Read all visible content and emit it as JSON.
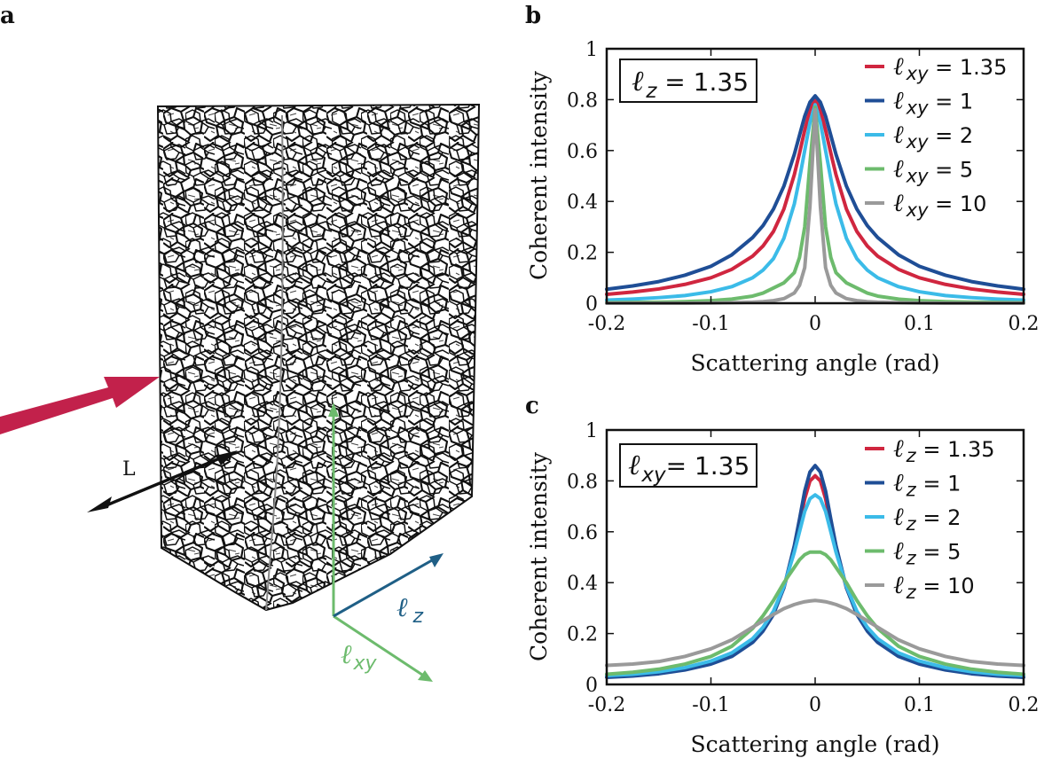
{
  "figure": {
    "panel_a": {
      "letter": "a",
      "arrow_L_label": "L",
      "axis_z": {
        "ell": "ℓ",
        "sub": "z",
        "color": "#1f5f86"
      },
      "axis_xy": {
        "ell": "ℓ",
        "sub": "xy",
        "color": "#6dbb6d"
      },
      "beam_color": "#c2214b",
      "foam_color": "#111111"
    }
  },
  "chart_data": [
    {
      "panel": "b",
      "type": "line",
      "xlabel": "Scattering angle (rad)",
      "ylabel": "Coherent intensity",
      "xlim": [
        -0.2,
        0.2
      ],
      "ylim": [
        0,
        1
      ],
      "xticks": [
        -0.2,
        -0.1,
        0,
        0.1,
        0.2
      ],
      "xticklabels": [
        "-0.2",
        "-0.1",
        "0",
        "0.1",
        "0.2"
      ],
      "yticks": [
        0,
        0.2,
        0.4,
        0.6,
        0.8,
        1
      ],
      "yticklabels": [
        "0",
        "0.2",
        "0.4",
        "0.6",
        "0.8",
        "1"
      ],
      "annotation": {
        "ell": "ℓ",
        "sub": "z",
        "text": " = 1.35"
      },
      "legend_position": "top-right",
      "x": [
        -0.2,
        -0.175,
        -0.15,
        -0.125,
        -0.1,
        -0.08,
        -0.06,
        -0.05,
        -0.04,
        -0.03,
        -0.02,
        -0.015,
        -0.01,
        -0.005,
        0,
        0.005,
        0.01,
        0.015,
        0.02,
        0.03,
        0.04,
        0.05,
        0.06,
        0.08,
        0.1,
        0.125,
        0.15,
        0.175,
        0.2
      ],
      "series": [
        {
          "name": "1.35",
          "ell": "ℓ",
          "sub": "xy",
          "color": "#d0263f",
          "values": [
            0.035,
            0.044,
            0.056,
            0.074,
            0.1,
            0.133,
            0.185,
            0.225,
            0.282,
            0.37,
            0.505,
            0.59,
            0.68,
            0.76,
            0.8,
            0.76,
            0.68,
            0.59,
            0.505,
            0.37,
            0.282,
            0.225,
            0.185,
            0.133,
            0.1,
            0.074,
            0.056,
            0.044,
            0.035
          ]
        },
        {
          "name": "1",
          "ell": "ℓ",
          "sub": "xy",
          "color": "#1f4e96",
          "values": [
            0.055,
            0.068,
            0.085,
            0.11,
            0.145,
            0.19,
            0.258,
            0.305,
            0.37,
            0.46,
            0.585,
            0.66,
            0.735,
            0.79,
            0.815,
            0.79,
            0.735,
            0.66,
            0.585,
            0.46,
            0.37,
            0.305,
            0.258,
            0.19,
            0.145,
            0.11,
            0.085,
            0.068,
            0.055
          ]
        },
        {
          "name": "2",
          "ell": "ℓ",
          "sub": "xy",
          "color": "#3bbbe8",
          "values": [
            0.012,
            0.016,
            0.022,
            0.03,
            0.045,
            0.065,
            0.1,
            0.13,
            0.175,
            0.255,
            0.39,
            0.49,
            0.6,
            0.71,
            0.78,
            0.71,
            0.6,
            0.49,
            0.39,
            0.255,
            0.175,
            0.13,
            0.1,
            0.065,
            0.045,
            0.03,
            0.022,
            0.016,
            0.012
          ]
        },
        {
          "name": "5",
          "ell": "ℓ",
          "sub": "xy",
          "color": "#6dbb6d",
          "values": [
            0.002,
            0.003,
            0.004,
            0.006,
            0.01,
            0.016,
            0.028,
            0.04,
            0.06,
            0.08,
            0.12,
            0.18,
            0.3,
            0.55,
            0.77,
            0.55,
            0.3,
            0.18,
            0.12,
            0.08,
            0.06,
            0.04,
            0.028,
            0.016,
            0.01,
            0.006,
            0.004,
            0.003,
            0.002
          ]
        },
        {
          "name": "10",
          "ell": "ℓ",
          "sub": "xy",
          "color": "#9a9a9a",
          "values": [
            0.0,
            0.0,
            0.0,
            0.0,
            0.001,
            0.002,
            0.004,
            0.006,
            0.01,
            0.018,
            0.04,
            0.07,
            0.14,
            0.38,
            0.76,
            0.38,
            0.14,
            0.07,
            0.04,
            0.018,
            0.01,
            0.006,
            0.004,
            0.002,
            0.001,
            0.0,
            0.0,
            0.0,
            0.0
          ]
        }
      ]
    },
    {
      "panel": "c",
      "type": "line",
      "xlabel": "Scattering angle (rad)",
      "ylabel": "Coherent intensity",
      "xlim": [
        -0.2,
        0.2
      ],
      "ylim": [
        0,
        1
      ],
      "xticks": [
        -0.2,
        -0.1,
        0,
        0.1,
        0.2
      ],
      "xticklabels": [
        "-0.2",
        "-0.1",
        "0",
        "0.1",
        "0.2"
      ],
      "yticks": [
        0,
        0.2,
        0.4,
        0.6,
        0.8,
        1
      ],
      "yticklabels": [
        "0",
        "0.2",
        "0.4",
        "0.6",
        "0.8",
        "1"
      ],
      "annotation": {
        "ell": "ℓ",
        "sub": "xy",
        "text": "= 1.35"
      },
      "legend_position": "top-right",
      "x": [
        -0.2,
        -0.175,
        -0.15,
        -0.125,
        -0.1,
        -0.08,
        -0.06,
        -0.05,
        -0.04,
        -0.03,
        -0.02,
        -0.015,
        -0.01,
        -0.005,
        0,
        0.005,
        0.01,
        0.015,
        0.02,
        0.03,
        0.04,
        0.05,
        0.06,
        0.08,
        0.1,
        0.125,
        0.15,
        0.175,
        0.2
      ],
      "series": [
        {
          "name": "1.35",
          "ell": "ℓ",
          "sub": "z",
          "color": "#d0263f",
          "values": [
            0.03,
            0.035,
            0.045,
            0.06,
            0.085,
            0.115,
            0.17,
            0.215,
            0.28,
            0.38,
            0.53,
            0.63,
            0.73,
            0.8,
            0.82,
            0.8,
            0.73,
            0.63,
            0.53,
            0.38,
            0.28,
            0.215,
            0.17,
            0.115,
            0.085,
            0.06,
            0.045,
            0.035,
            0.03
          ]
        },
        {
          "name": "1",
          "ell": "ℓ",
          "sub": "z",
          "color": "#1f4e96",
          "values": [
            0.028,
            0.033,
            0.042,
            0.057,
            0.08,
            0.11,
            0.165,
            0.21,
            0.275,
            0.38,
            0.545,
            0.65,
            0.76,
            0.835,
            0.86,
            0.835,
            0.76,
            0.65,
            0.545,
            0.38,
            0.275,
            0.21,
            0.165,
            0.11,
            0.08,
            0.057,
            0.042,
            0.033,
            0.028
          ]
        },
        {
          "name": "2",
          "ell": "ℓ",
          "sub": "z",
          "color": "#3bbbe8",
          "values": [
            0.035,
            0.04,
            0.05,
            0.066,
            0.092,
            0.124,
            0.18,
            0.225,
            0.288,
            0.385,
            0.52,
            0.6,
            0.68,
            0.73,
            0.745,
            0.73,
            0.68,
            0.6,
            0.52,
            0.385,
            0.288,
            0.225,
            0.18,
            0.124,
            0.092,
            0.066,
            0.05,
            0.04,
            0.035
          ]
        },
        {
          "name": "5",
          "ell": "ℓ",
          "sub": "z",
          "color": "#6dbb6d",
          "values": [
            0.04,
            0.048,
            0.06,
            0.08,
            0.11,
            0.15,
            0.22,
            0.27,
            0.33,
            0.4,
            0.46,
            0.49,
            0.51,
            0.52,
            0.52,
            0.52,
            0.51,
            0.49,
            0.46,
            0.4,
            0.33,
            0.27,
            0.22,
            0.15,
            0.11,
            0.08,
            0.06,
            0.048,
            0.04
          ]
        },
        {
          "name": "10",
          "ell": "ℓ",
          "sub": "z",
          "color": "#9a9a9a",
          "values": [
            0.075,
            0.08,
            0.09,
            0.11,
            0.14,
            0.175,
            0.225,
            0.25,
            0.275,
            0.298,
            0.314,
            0.32,
            0.325,
            0.328,
            0.33,
            0.328,
            0.325,
            0.32,
            0.314,
            0.298,
            0.275,
            0.25,
            0.225,
            0.175,
            0.14,
            0.11,
            0.09,
            0.08,
            0.075
          ]
        }
      ]
    }
  ]
}
